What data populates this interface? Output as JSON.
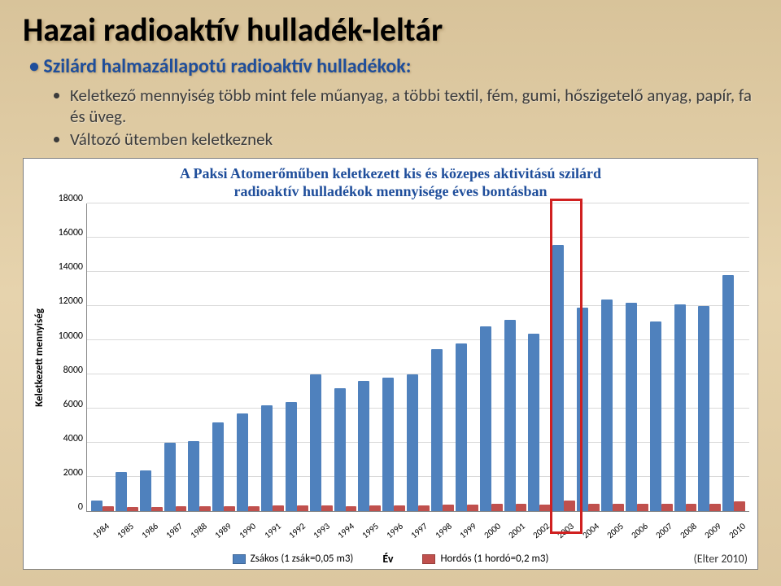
{
  "title": "Hazai radioaktív hulladék-leltár",
  "subtitle": "• Szilárd halmazállapotú radioaktív hulladékok:",
  "bullets": [
    "Keletkező mennyiség több mint fele műanyag, a többi textil, fém, gumi, hőszigetelő anyag, papír, fa és üveg.",
    "Változó ütemben keletkeznek"
  ],
  "chart": {
    "title_line1": "A Paksi Atomerőműben keletkezett kis és közepes aktivitású szilárd",
    "title_line2": "radioaktív hulladékok mennyisége éves bontásban",
    "ylabel": "Keletkezett mennyiség",
    "xlabel": "Év",
    "ylim": [
      0,
      18000
    ],
    "ytick_step": 2000,
    "yticks": [
      "0",
      "2000",
      "4000",
      "6000",
      "8000",
      "10000",
      "12000",
      "14000",
      "16000",
      "18000"
    ],
    "grid_color": "#d9d9d9",
    "background": "#ffffff",
    "years": [
      "1984",
      "1985",
      "1986",
      "1987",
      "1988",
      "1989",
      "1990",
      "1991",
      "1992",
      "1993",
      "1994",
      "1995",
      "1996",
      "1997",
      "1998",
      "1999",
      "2000",
      "2001",
      "2002",
      "2003",
      "2004",
      "2005",
      "2006",
      "2007",
      "2008",
      "2009",
      "2010"
    ],
    "series": [
      {
        "name": "Zsákos (1 zsák=0,05 m3)",
        "color": "#4f81bd",
        "values": [
          600,
          2300,
          2400,
          4000,
          4100,
          5200,
          5700,
          6200,
          6400,
          8000,
          7200,
          7600,
          7800,
          8000,
          9500,
          9800,
          10800,
          11200,
          10400,
          15600,
          11900,
          12400,
          12200,
          11100,
          12100,
          12000,
          13800
        ]
      },
      {
        "name": "Hordós (1 hordó=0,2 m3)",
        "color": "#c0504d",
        "values": [
          300,
          250,
          250,
          300,
          300,
          300,
          300,
          350,
          350,
          350,
          300,
          350,
          350,
          350,
          400,
          400,
          450,
          450,
          400,
          600,
          450,
          450,
          450,
          420,
          450,
          450,
          550
        ]
      }
    ],
    "highlight_year": "2003",
    "source": "(Elter 2010)"
  }
}
